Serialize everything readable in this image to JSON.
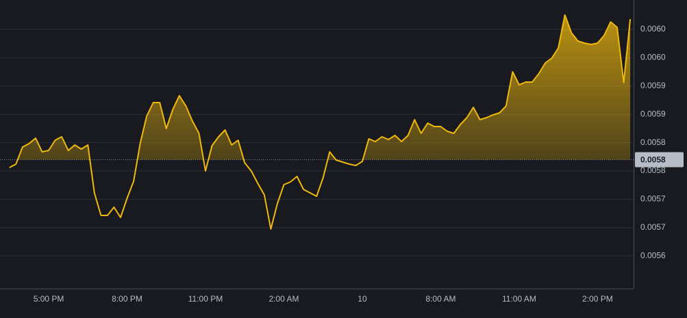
{
  "chart_data": {
    "type": "area-line",
    "categories": [
      null,
      null,
      null,
      null,
      null,
      null,
      "5:00 PM",
      null,
      null,
      null,
      null,
      null,
      null,
      null,
      null,
      null,
      null,
      null,
      "8:00 PM",
      null,
      null,
      null,
      null,
      null,
      null,
      null,
      null,
      null,
      null,
      null,
      "11:00 PM",
      null,
      null,
      null,
      null,
      null,
      null,
      null,
      null,
      null,
      null,
      null,
      "2:00 AM",
      null,
      null,
      null,
      null,
      null,
      null,
      null,
      null,
      null,
      null,
      null,
      "10",
      null,
      null,
      null,
      null,
      null,
      null,
      null,
      null,
      null,
      null,
      null,
      "8:00 AM",
      null,
      null,
      null,
      null,
      null,
      null,
      null,
      null,
      null,
      null,
      null,
      "11:00 AM",
      null,
      null,
      null,
      null,
      null,
      null,
      null,
      null,
      null,
      null,
      null,
      "2:00 PM",
      null,
      null,
      null,
      null,
      null
    ],
    "values": [
      0.005756,
      0.0057621,
      0.0057923,
      0.0057983,
      0.005808,
      0.0057838,
      0.0057862,
      0.0058044,
      0.0058104,
      0.0057862,
      0.0057959,
      0.0057887,
      0.0057959,
      0.0057114,
      0.0056715,
      0.0056715,
      0.005686,
      0.0056679,
      0.0057017,
      0.0057319,
      0.0057983,
      0.0058466,
      0.0058708,
      0.0058708,
      0.0058249,
      0.0058587,
      0.0058829,
      0.0058647,
      0.0058382,
      0.0058164,
      0.00575,
      0.0057947,
      0.0058104,
      0.0058225,
      0.0057959,
      0.0058044,
      0.0057645,
      0.00575,
      0.0057283,
      0.0057077,
      0.0056474,
      0.005692,
      0.0057259,
      0.0057307,
      0.0057403,
      0.0057174,
      0.0057114,
      0.0057053,
      0.0057379,
      0.0057838,
      0.0057693,
      0.0057657,
      0.0057621,
      0.0057597,
      0.0057669,
      0.0058068,
      0.0058019,
      0.0058104,
      0.0058056,
      0.0058128,
      0.0058019,
      0.0058128,
      0.0058406,
      0.0058164,
      0.0058345,
      0.0058285,
      0.0058285,
      0.00582,
      0.0058164,
      0.0058321,
      0.0058442,
      0.0058623,
      0.0058406,
      0.0058442,
      0.005849,
      0.0058527,
      0.0058647,
      0.0059251,
      0.0059022,
      0.005907,
      0.005907,
      0.0059215,
      0.0059408,
      0.0059493,
      0.0059674,
      0.0060254,
      0.005994,
      0.0059795,
      0.0059758,
      0.0059734,
      0.0059758,
      0.0059891,
      0.0060133,
      0.0060036,
      0.005906,
      0.0060181
    ],
    "color": "#f0b90b",
    "ylim": [
      0.0055423,
      0.0060519
    ],
    "yticks": [
      {
        "value": 0.006,
        "label": "0.0060"
      },
      {
        "value": 0.00595,
        "label": "0.0060"
      },
      {
        "value": 0.0059,
        "label": "0.0059"
      },
      {
        "value": 0.00585,
        "label": "0.0059"
      },
      {
        "value": 0.0058,
        "label": "0.0058"
      },
      {
        "value": 0.00575,
        "label": "0.0058"
      },
      {
        "value": 0.0057,
        "label": "0.0057"
      },
      {
        "value": 0.00565,
        "label": "0.0057"
      },
      {
        "value": 0.0056,
        "label": "0.0056"
      }
    ],
    "reference_line": {
      "value": 0.00577,
      "label": "0.0058"
    },
    "grid": true
  }
}
